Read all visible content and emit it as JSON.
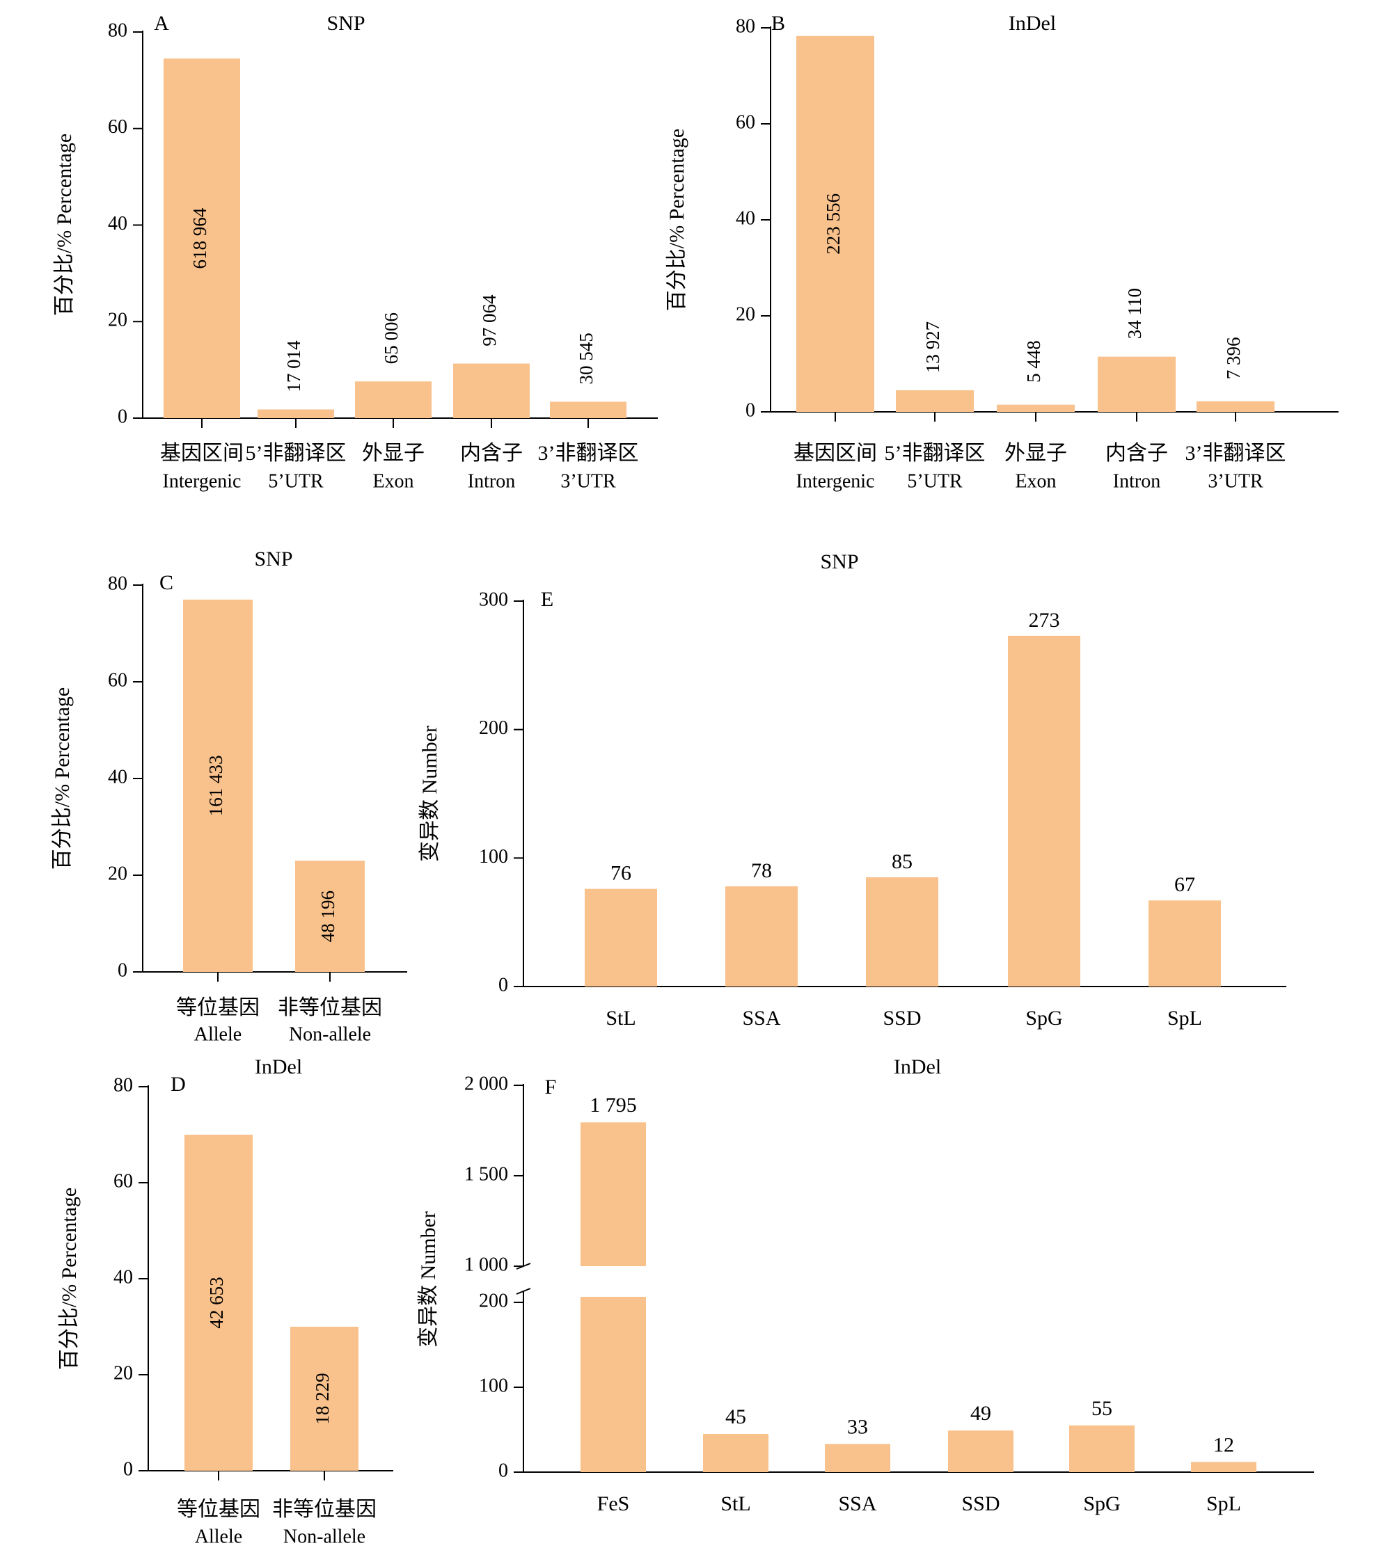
{
  "bar_color": "#F9C18B",
  "axis_color": "#000000",
  "chart_data": [
    {
      "panel": "A",
      "type": "bar",
      "title": "SNP",
      "ylabel": "百分比/% Percentage",
      "ylim": [
        0,
        80
      ],
      "yticks": [
        "0",
        "20",
        "40",
        "60",
        "80"
      ],
      "categories": [
        {
          "zh": "基因区间",
          "en": "Intergenic"
        },
        {
          "zh": "5’非翻译区",
          "en": "5’UTR"
        },
        {
          "zh": "外显子",
          "en": "Exon"
        },
        {
          "zh": "内含子",
          "en": "Intron"
        },
        {
          "zh": "3’非翻译区",
          "en": "3’UTR"
        }
      ],
      "values": [
        74.5,
        1.8,
        7.6,
        11.3,
        3.4
      ],
      "labels": [
        "618 964",
        "17 014",
        "65 006",
        "97 064",
        "30 545"
      ]
    },
    {
      "panel": "B",
      "type": "bar",
      "title": "InDel",
      "ylabel": "百分比/% Percentage",
      "ylim": [
        0,
        80
      ],
      "yticks": [
        "0",
        "20",
        "40",
        "60",
        "80"
      ],
      "categories": [
        {
          "zh": "基因区间",
          "en": "Intergenic"
        },
        {
          "zh": "5’非翻译区",
          "en": "5’UTR"
        },
        {
          "zh": "外显子",
          "en": "Exon"
        },
        {
          "zh": "内含子",
          "en": "Intron"
        },
        {
          "zh": "3’非翻译区",
          "en": "3’UTR"
        }
      ],
      "values": [
        78.3,
        4.5,
        1.5,
        11.5,
        2.2
      ],
      "labels": [
        "223 556",
        "13 927",
        "5 448",
        "34 110",
        "7 396"
      ]
    },
    {
      "panel": "C",
      "type": "bar",
      "title": "SNP",
      "ylabel": "百分比/% Percentage",
      "ylim": [
        0,
        80
      ],
      "yticks": [
        "0",
        "20",
        "40",
        "60",
        "80"
      ],
      "categories": [
        {
          "zh": "等位基因",
          "en": "Allele"
        },
        {
          "zh": "非等位基因",
          "en": "Non-allele"
        }
      ],
      "values": [
        77,
        23
      ],
      "labels": [
        "161 433",
        "48 196"
      ]
    },
    {
      "panel": "D",
      "type": "bar",
      "title": "InDel",
      "ylabel": "百分比/% Percentage",
      "ylim": [
        0,
        80
      ],
      "yticks": [
        "0",
        "20",
        "40",
        "60",
        "80"
      ],
      "categories": [
        {
          "zh": "等位基因",
          "en": "Allele"
        },
        {
          "zh": "非等位基因",
          "en": "Non-allele"
        }
      ],
      "values": [
        70,
        30
      ],
      "labels": [
        "42 653",
        "18 229"
      ]
    },
    {
      "panel": "E",
      "type": "bar",
      "title": "SNP",
      "ylabel": "变异数 Number",
      "ylim": [
        0,
        300
      ],
      "yticks": [
        "0",
        "100",
        "200",
        "300"
      ],
      "categories": [
        "StL",
        "SSA",
        "SSD",
        "SpG",
        "SpL"
      ],
      "values": [
        76,
        78,
        85,
        273,
        67
      ],
      "labels": [
        "76",
        "78",
        "85",
        "273",
        "67"
      ]
    },
    {
      "panel": "F",
      "type": "bar",
      "title": "InDel",
      "ylabel": "变异数 Number",
      "broken_axis": true,
      "ylim_lower": [
        0,
        200
      ],
      "ylim_upper": [
        1000,
        2000
      ],
      "yticks_lower": [
        "0",
        "100",
        "200"
      ],
      "yticks_upper": [
        "1 000",
        "1 500",
        "2 000"
      ],
      "categories": [
        "FeS",
        "StL",
        "SSA",
        "SSD",
        "SpG",
        "SpL"
      ],
      "values": [
        1795,
        45,
        33,
        49,
        55,
        12
      ],
      "labels": [
        "1 795",
        "45",
        "33",
        "49",
        "55",
        "12"
      ]
    }
  ]
}
